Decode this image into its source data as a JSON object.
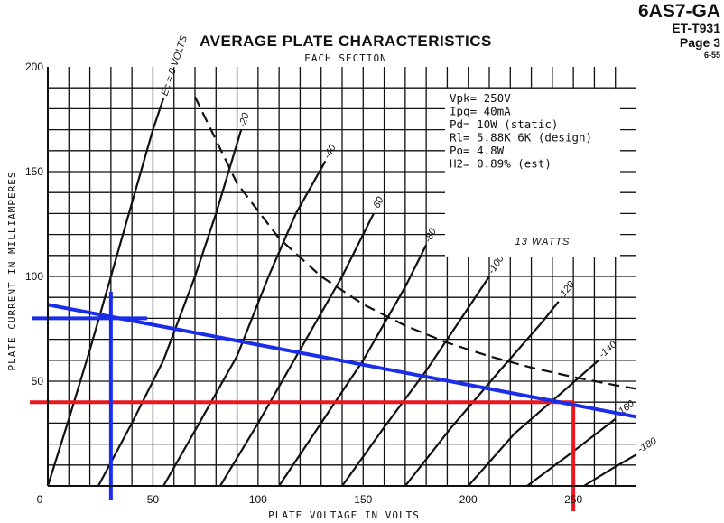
{
  "header": {
    "tube_type": "6AS7-GA",
    "doc_code": "ET-T931",
    "page": "Page 3",
    "date": "6-55"
  },
  "chart_data": {
    "type": "line",
    "title": "AVERAGE PLATE CHARACTERISTICS",
    "subtitle": "EACH SECTION",
    "xlabel": "PLATE VOLTAGE IN VOLTS",
    "ylabel": "PLATE CURRENT IN MILLIAMPERES",
    "xlim": [
      0,
      280
    ],
    "ylim": [
      0,
      200
    ],
    "x_ticks": [
      0,
      50,
      100,
      150,
      200,
      250
    ],
    "y_ticks": [
      50,
      100,
      150,
      200
    ],
    "grid": true,
    "series": [
      {
        "name": "Ec = 0 VOLTS",
        "points": [
          [
            0,
            0
          ],
          [
            10,
            32
          ],
          [
            20,
            65
          ],
          [
            30,
            100
          ],
          [
            40,
            135
          ],
          [
            50,
            170
          ],
          [
            55,
            185
          ]
        ]
      },
      {
        "name": "-20",
        "points": [
          [
            24,
            0
          ],
          [
            40,
            30
          ],
          [
            55,
            60
          ],
          [
            70,
            100
          ],
          [
            80,
            130
          ],
          [
            92,
            170
          ]
        ]
      },
      {
        "name": "-40",
        "points": [
          [
            55,
            0
          ],
          [
            72,
            30
          ],
          [
            90,
            62
          ],
          [
            105,
            100
          ],
          [
            118,
            130
          ],
          [
            132,
            155
          ]
        ]
      },
      {
        "name": "-60",
        "points": [
          [
            82,
            0
          ],
          [
            100,
            30
          ],
          [
            120,
            65
          ],
          [
            140,
            100
          ],
          [
            155,
            130
          ]
        ]
      },
      {
        "name": "-80",
        "points": [
          [
            110,
            0
          ],
          [
            130,
            30
          ],
          [
            150,
            60
          ],
          [
            170,
            95
          ],
          [
            180,
            115
          ]
        ]
      },
      {
        "name": "-100",
        "points": [
          [
            140,
            0
          ],
          [
            160,
            28
          ],
          [
            180,
            55
          ],
          [
            198,
            82
          ],
          [
            210,
            100
          ]
        ]
      },
      {
        "name": "-120",
        "points": [
          [
            170,
            0
          ],
          [
            192,
            28
          ],
          [
            215,
            55
          ],
          [
            235,
            78
          ],
          [
            243,
            88
          ]
        ]
      },
      {
        "name": "-140",
        "points": [
          [
            200,
            0
          ],
          [
            222,
            25
          ],
          [
            245,
            45
          ],
          [
            262,
            60
          ]
        ]
      },
      {
        "name": "-160",
        "points": [
          [
            228,
            0
          ],
          [
            248,
            15
          ],
          [
            270,
            32
          ]
        ]
      },
      {
        "name": "-180",
        "points": [
          [
            255,
            0
          ],
          [
            268,
            8
          ],
          [
            280,
            15
          ]
        ]
      }
    ],
    "dissipation_curve": {
      "label": "13 WATTS",
      "points": [
        [
          70,
          185.7
        ],
        [
          90,
          144.4
        ],
        [
          110,
          118.2
        ],
        [
          130,
          100
        ],
        [
          150,
          86.7
        ],
        [
          170,
          76.5
        ],
        [
          190,
          68.4
        ],
        [
          210,
          61.9
        ],
        [
          230,
          56.5
        ],
        [
          250,
          52
        ],
        [
          270,
          48.1
        ],
        [
          280,
          46.4
        ]
      ]
    },
    "load_line": {
      "points": [
        [
          0,
          86.5
        ],
        [
          280,
          33
        ]
      ]
    },
    "operating_point": {
      "vertical_x": 250,
      "horizontal_y": 40
    },
    "aux_lines": {
      "vertical_x": 30,
      "horizontal_y": 80
    },
    "annotation_box": {
      "lines": [
        "Vpk= 250V",
        "Ipq= 40mA",
        "Pd= 10W (static)",
        "Rl= 5.88K 6K (design)",
        "Po= 4.8W",
        "H2= 0.89% (est)"
      ]
    },
    "colors": {
      "curves": "#111111",
      "grid": "#111111",
      "load_line": "#1a2de8",
      "operating_point": "#e8181e"
    }
  }
}
